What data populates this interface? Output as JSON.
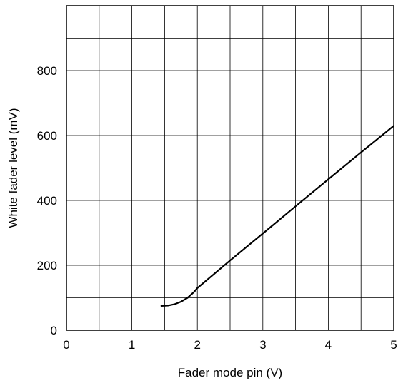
{
  "chart_data": {
    "type": "line",
    "title": "",
    "xlabel": "Fader mode pin (V)",
    "ylabel": "White fader level (mV)",
    "xlim": [
      0,
      5
    ],
    "ylim": [
      0,
      1000
    ],
    "x_ticks": [
      0,
      1,
      2,
      3,
      4,
      5
    ],
    "x_tick_labels": [
      "0",
      "1",
      "2",
      "3",
      "4",
      "5"
    ],
    "y_ticks": [
      0,
      200,
      400,
      600,
      800
    ],
    "y_tick_labels": [
      "0",
      "200",
      "400",
      "600",
      "800"
    ],
    "x_gridlines": [
      0,
      0.5,
      1,
      1.5,
      2,
      2.5,
      3,
      3.5,
      4,
      4.5,
      5
    ],
    "y_gridlines": [
      0,
      100,
      200,
      300,
      400,
      500,
      600,
      700,
      800,
      900,
      1000
    ],
    "grid": true,
    "legend": "none",
    "line_color": "#000000",
    "series": [
      {
        "x": [
          1.45,
          1.55,
          1.65,
          1.75,
          1.85,
          1.95,
          2.0,
          2.5,
          3.0,
          3.5,
          4.0,
          4.5,
          5.0
        ],
        "y": [
          75,
          76,
          80,
          88,
          100,
          118,
          130,
          215,
          298,
          382,
          465,
          548,
          630
        ]
      }
    ]
  }
}
